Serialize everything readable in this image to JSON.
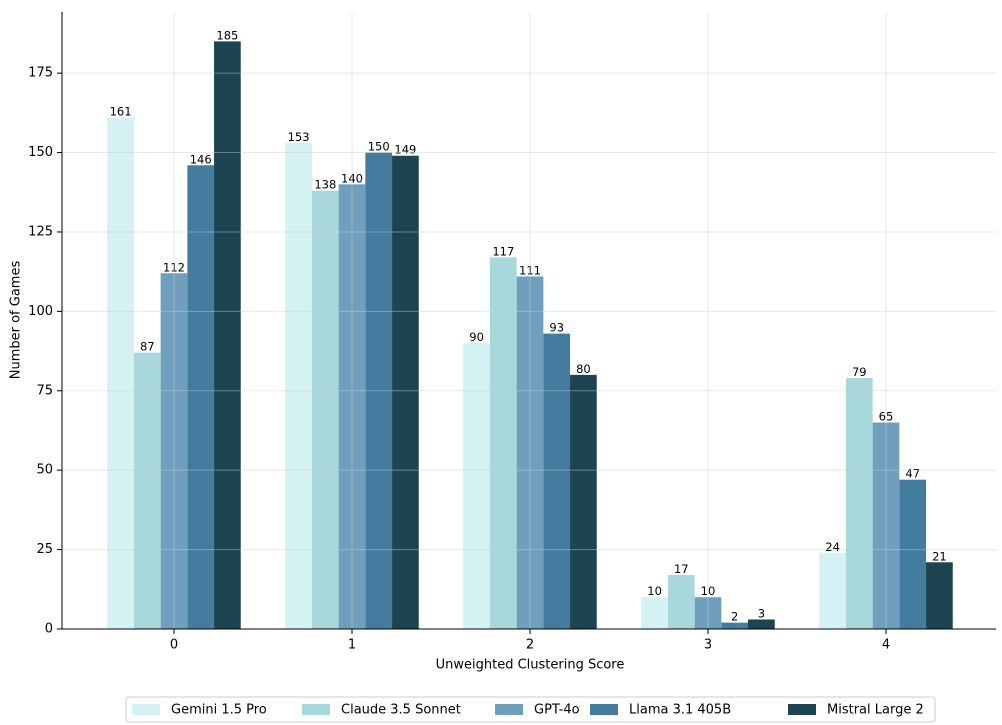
{
  "chart_data": {
    "type": "bar",
    "x_label": "Unweighted Clustering Score",
    "y_label": "Number of Games",
    "categories": [
      "0",
      "1",
      "2",
      "3",
      "4"
    ],
    "series": [
      {
        "name": "Gemini 1.5 Pro",
        "color": "#d4f1f4",
        "values": [
          161,
          153,
          90,
          10,
          24
        ]
      },
      {
        "name": "Claude 3.5 Sonnet",
        "color": "#a8d8dc",
        "values": [
          87,
          138,
          117,
          17,
          79
        ]
      },
      {
        "name": "GPT-4o",
        "color": "#6f9fbd",
        "values": [
          112,
          140,
          111,
          10,
          65
        ]
      },
      {
        "name": "Llama 3.1 405B",
        "color": "#437c9e",
        "values": [
          146,
          150,
          93,
          2,
          47
        ]
      },
      {
        "name": "Mistral Large 2",
        "color": "#1d4451",
        "values": [
          185,
          149,
          80,
          3,
          21
        ]
      }
    ],
    "ylim": [
      0,
      194.25
    ],
    "yticks": [
      0,
      25,
      50,
      75,
      100,
      125,
      150,
      175
    ],
    "grid": true,
    "legend": "bottom"
  }
}
